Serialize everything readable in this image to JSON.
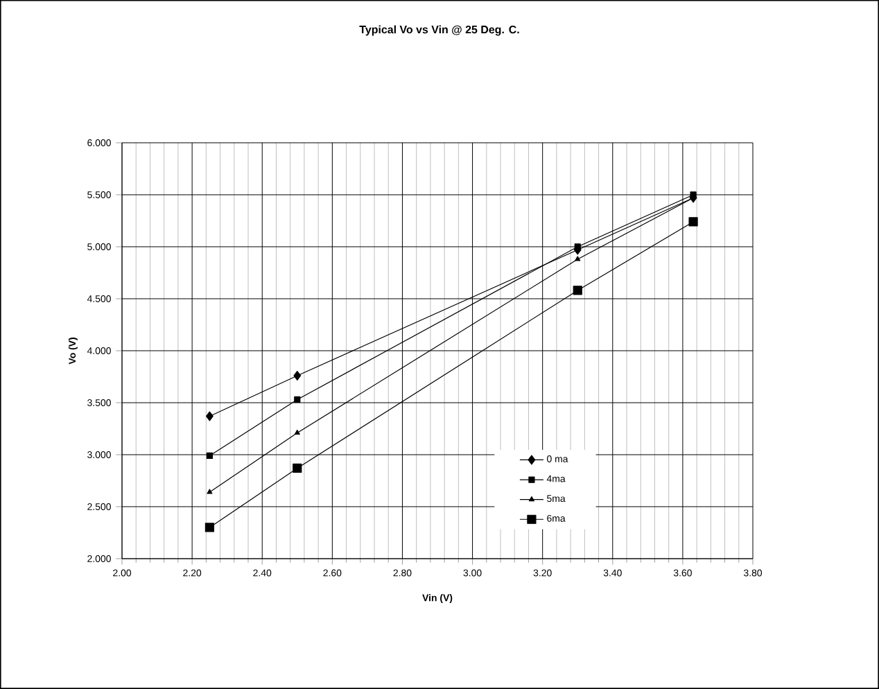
{
  "chart_data": {
    "type": "line",
    "title": "Typical Vo vs Vin @ 25 Deg. C.",
    "xlabel": "Vin (V)",
    "ylabel": "Vo (V)",
    "x": [
      2.25,
      2.5,
      3.3,
      3.63
    ],
    "series": [
      {
        "name": "0 ma",
        "color": "#000000",
        "marker": "diamond",
        "values": [
          3.37,
          3.76,
          4.97,
          5.47
        ]
      },
      {
        "name": "4ma",
        "color": "#000000",
        "marker": "square",
        "values": [
          2.99,
          3.53,
          5.0,
          5.5
        ]
      },
      {
        "name": "5ma",
        "color": "#000000",
        "marker": "triangle",
        "values": [
          2.64,
          3.21,
          4.88,
          5.47
        ]
      },
      {
        "name": "6ma",
        "color": "#000000",
        "marker": "square",
        "values": [
          2.3,
          2.87,
          4.58,
          5.24
        ]
      }
    ],
    "xlim": [
      2.0,
      3.8
    ],
    "xticks": [
      {
        "value": 2.0,
        "label": "2.00"
      },
      {
        "value": 2.2,
        "label": "2.20"
      },
      {
        "value": 2.4,
        "label": "2.40"
      },
      {
        "value": 2.6,
        "label": "2.60"
      },
      {
        "value": 2.8,
        "label": "2.80"
      },
      {
        "value": 3.0,
        "label": "3.00"
      },
      {
        "value": 3.2,
        "label": "3.20"
      },
      {
        "value": 3.4,
        "label": "3.40"
      },
      {
        "value": 3.6,
        "label": "3.60"
      },
      {
        "value": 3.8,
        "label": "3.80"
      }
    ],
    "ylim": [
      2.0,
      6.0
    ],
    "yticks": [
      {
        "value": 2.0,
        "label": "2.000"
      },
      {
        "value": 2.5,
        "label": "2.500"
      },
      {
        "value": 3.0,
        "label": "3.000"
      },
      {
        "value": 3.5,
        "label": "3.500"
      },
      {
        "value": 4.0,
        "label": "4.000"
      },
      {
        "value": 4.5,
        "label": "4.500"
      },
      {
        "value": 5.0,
        "label": "5.000"
      },
      {
        "value": 5.5,
        "label": "5.500"
      },
      {
        "value": 6.0,
        "label": "6.000"
      }
    ],
    "grid": true,
    "legend": "right",
    "line_style": "solid"
  }
}
